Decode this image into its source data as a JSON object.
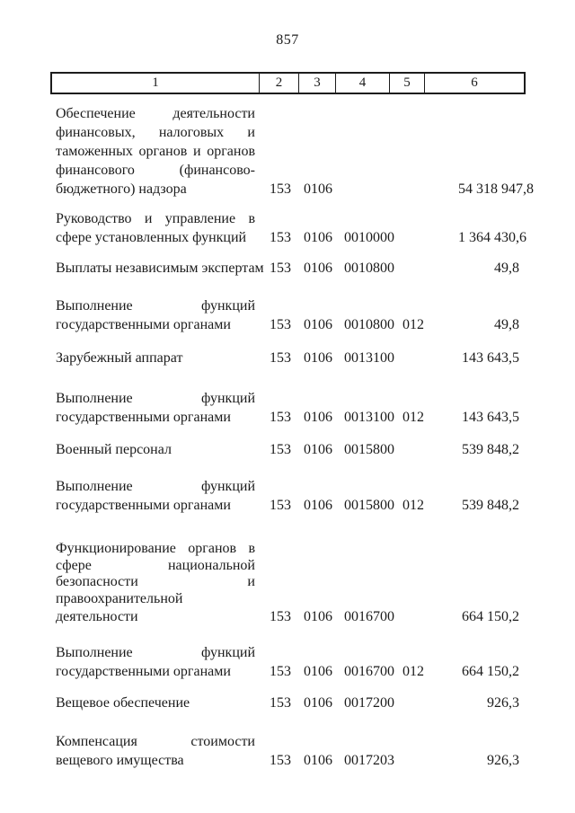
{
  "page": {
    "number": "857"
  },
  "table": {
    "header": [
      "1",
      "2",
      "3",
      "4",
      "5",
      "6"
    ],
    "rows": [
      {
        "label_lines": [
          "Обеспечение деятельности",
          "финансовых, налоговых и",
          "таможенных органов и органов",
          "финансового (финансово-",
          "бюджетного) надзора"
        ],
        "c2": "153",
        "c3": "0106",
        "c4": "",
        "c5": "",
        "c6": "54 318 947,8"
      },
      {
        "label_lines": [
          "Руководство и управление в",
          "сфере установленных функций"
        ],
        "c2": "153",
        "c3": "0106",
        "c4": "0010000",
        "c5": "",
        "c6": "1 364 430,6"
      },
      {
        "label_lines": [
          "Выплаты независимым экспертам"
        ],
        "c2": "153",
        "c3": "0106",
        "c4": "0010800",
        "c5": "",
        "c6": "49,8"
      },
      {
        "label_lines": [
          "Выполнение функций",
          "государственными органами"
        ],
        "c2": "153",
        "c3": "0106",
        "c4": "0010800",
        "c5": "012",
        "c6": "49,8"
      },
      {
        "label_lines": [
          "Зарубежный аппарат"
        ],
        "c2": "153",
        "c3": "0106",
        "c4": "0013100",
        "c5": "",
        "c6": "143 643,5"
      },
      {
        "label_lines": [
          "Выполнение функций",
          "государственными органами"
        ],
        "c2": "153",
        "c3": "0106",
        "c4": "0013100",
        "c5": "012",
        "c6": "143 643,5"
      },
      {
        "label_lines": [
          "Военный персонал"
        ],
        "c2": "153",
        "c3": "0106",
        "c4": "0015800",
        "c5": "",
        "c6": "539 848,2"
      },
      {
        "label_lines": [
          "Выполнение функций",
          "государственными органами"
        ],
        "c2": "153",
        "c3": "0106",
        "c4": "0015800",
        "c5": "012",
        "c6": "539 848,2"
      },
      {
        "label_lines": [
          "Функционирование органов в",
          "сфере национальной",
          "безопасности и",
          "правоохранительной",
          "деятельности"
        ],
        "c2": "153",
        "c3": "0106",
        "c4": "0016700",
        "c5": "",
        "c6": "664 150,2"
      },
      {
        "label_lines": [
          "Выполнение функций",
          "государственными органами"
        ],
        "c2": "153",
        "c3": "0106",
        "c4": "0016700",
        "c5": "012",
        "c6": "664 150,2"
      },
      {
        "label_lines": [
          "Вещевое обеспечение"
        ],
        "c2": "153",
        "c3": "0106",
        "c4": "0017200",
        "c5": "",
        "c6": "926,3"
      },
      {
        "label_lines": [
          "Компенсация стоимости",
          "вещевого имущества"
        ],
        "c2": "153",
        "c3": "0106",
        "c4": "0017203",
        "c5": "",
        "c6": "926,3"
      }
    ]
  }
}
